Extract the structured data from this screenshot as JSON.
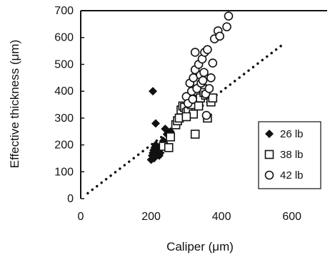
{
  "chart_data": {
    "type": "scatter",
    "title": "",
    "xlabel": "Caliper (μm)",
    "ylabel": "Effective thickness (μm)",
    "xlim": [
      0,
      700
    ],
    "ylim": [
      0,
      700
    ],
    "x_ticks": [
      "0",
      "200",
      "400",
      "600"
    ],
    "y_ticks": [
      "0",
      "100",
      "200",
      "300",
      "400",
      "500",
      "600",
      "700"
    ],
    "grid": false,
    "legend_position": "lower-right",
    "reference_line": {
      "style": "dotted",
      "x": [
        20,
        580
      ],
      "y": [
        20,
        580
      ]
    },
    "series": [
      {
        "name": "26 lb",
        "marker": "filled-diamond",
        "color": "#111111",
        "points": [
          [
            200,
            145
          ],
          [
            203,
            160
          ],
          [
            205,
            170
          ],
          [
            207,
            180
          ],
          [
            210,
            190
          ],
          [
            213,
            200
          ],
          [
            215,
            175
          ],
          [
            218,
            165
          ],
          [
            220,
            185
          ],
          [
            223,
            160
          ],
          [
            226,
            170
          ],
          [
            230,
            200
          ],
          [
            235,
            215
          ],
          [
            240,
            260
          ],
          [
            245,
            240
          ],
          [
            250,
            235
          ],
          [
            255,
            250
          ],
          [
            213,
            280
          ],
          [
            205,
            400
          ],
          [
            208,
            150
          ]
        ]
      },
      {
        "name": "38 lb",
        "marker": "open-square",
        "color": "#111111",
        "points": [
          [
            235,
            195
          ],
          [
            250,
            190
          ],
          [
            255,
            230
          ],
          [
            270,
            275
          ],
          [
            275,
            290
          ],
          [
            280,
            300
          ],
          [
            285,
            330
          ],
          [
            290,
            345
          ],
          [
            295,
            340
          ],
          [
            300,
            320
          ],
          [
            305,
            325
          ],
          [
            310,
            360
          ],
          [
            315,
            350
          ],
          [
            320,
            315
          ],
          [
            325,
            240
          ],
          [
            330,
            370
          ],
          [
            335,
            345
          ],
          [
            340,
            375
          ],
          [
            345,
            410
          ],
          [
            350,
            395
          ],
          [
            355,
            385
          ],
          [
            360,
            300
          ],
          [
            370,
            360
          ],
          [
            375,
            375
          ],
          [
            300,
            305
          ]
        ]
      },
      {
        "name": "42 lb",
        "marker": "open-circle",
        "color": "#111111",
        "points": [
          [
            300,
            380
          ],
          [
            305,
            355
          ],
          [
            310,
            430
          ],
          [
            315,
            400
          ],
          [
            318,
            370
          ],
          [
            320,
            450
          ],
          [
            325,
            480
          ],
          [
            325,
            545
          ],
          [
            330,
            410
          ],
          [
            335,
            500
          ],
          [
            340,
            460
          ],
          [
            342,
            430
          ],
          [
            345,
            520
          ],
          [
            347,
            440
          ],
          [
            350,
            470
          ],
          [
            352,
            545
          ],
          [
            355,
            390
          ],
          [
            357,
            310
          ],
          [
            360,
            555
          ],
          [
            365,
            410
          ],
          [
            370,
            450
          ],
          [
            375,
            505
          ],
          [
            380,
            595
          ],
          [
            390,
            625
          ],
          [
            395,
            605
          ],
          [
            415,
            640
          ],
          [
            420,
            680
          ]
        ]
      }
    ]
  }
}
